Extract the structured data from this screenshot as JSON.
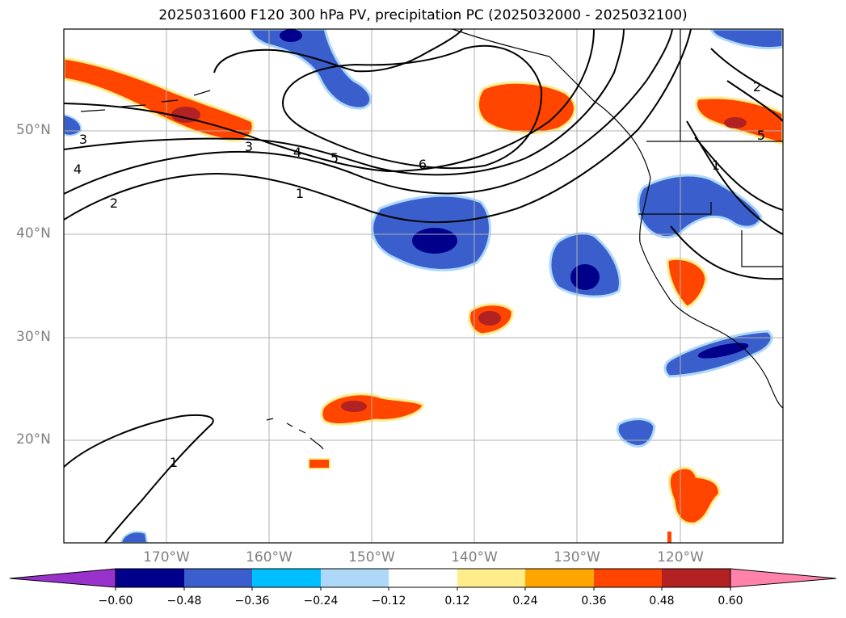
{
  "title": "2025031600 F120 300 hPa PV, precipitation PC (2025032000 - 2025032100)",
  "lat_labels": [
    "50°N",
    "40°N",
    "30°N",
    "20°N"
  ],
  "lon_labels": [
    "170°W",
    "160°W",
    "150°W",
    "140°W",
    "130°W",
    "120°W"
  ],
  "contour_labels": [
    "1",
    "2",
    "3",
    "4",
    "5",
    "6",
    "1",
    "2",
    "3",
    "4",
    "5",
    "1"
  ],
  "colorbar": {
    "ticks": [
      "−0.60",
      "−0.48",
      "−0.36",
      "−0.24",
      "−0.12",
      "0.12",
      "0.24",
      "0.36",
      "0.48",
      "0.60"
    ],
    "colors": [
      "#9932cc",
      "#00008b",
      "#3a5fcd",
      "#00bfff",
      "#add8f7",
      "#ffffff",
      "#ffec8b",
      "#ffa500",
      "#ff4500",
      "#b22222",
      "#ff82ab"
    ]
  }
}
